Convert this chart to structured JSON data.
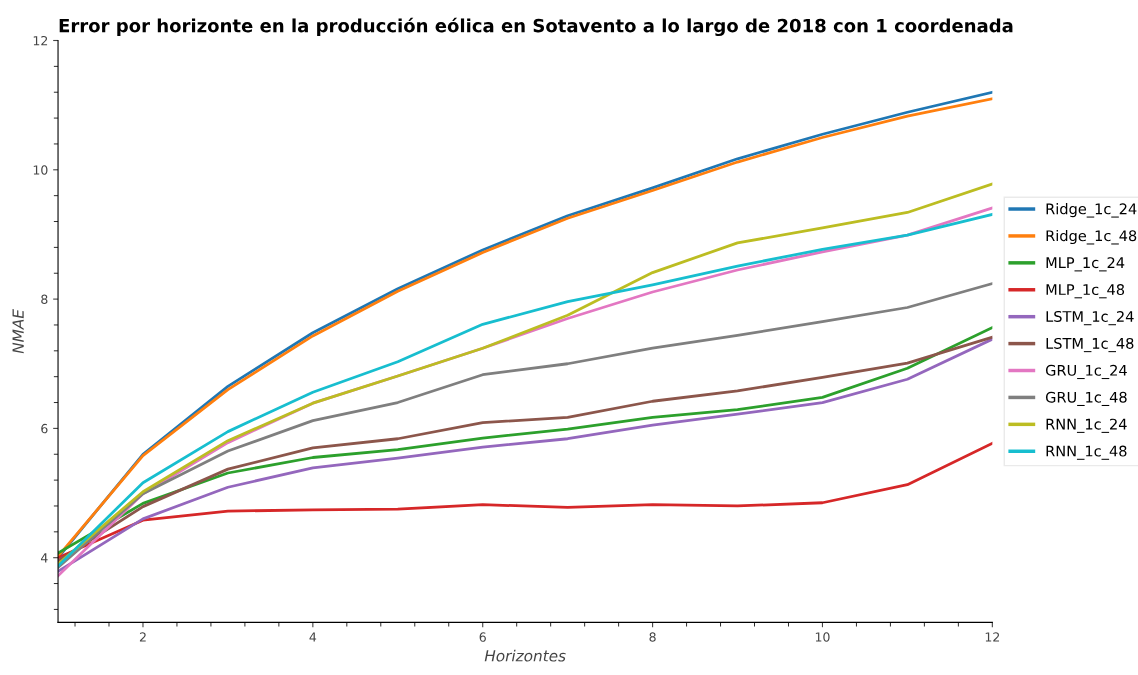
{
  "chart_data": {
    "type": "line",
    "title": "Error por horizonte en la producción eólica en Sotavento a lo largo de 2018 con 1 coordenada",
    "xlabel": "Horizontes",
    "ylabel": "NMAE",
    "x": [
      1,
      2,
      3,
      4,
      5,
      6,
      7,
      8,
      9,
      10,
      11,
      12
    ],
    "series": [
      {
        "name": "Ridge_1c_24",
        "color": "#1f77b4",
        "values": [
          4.0,
          5.6,
          6.65,
          7.48,
          8.16,
          8.76,
          9.29,
          9.72,
          10.17,
          10.55,
          10.89,
          11.2
        ]
      },
      {
        "name": "Ridge_1c_48",
        "color": "#ff7f0e",
        "values": [
          4.02,
          5.58,
          6.6,
          7.43,
          8.12,
          8.72,
          9.25,
          9.68,
          10.12,
          10.5,
          10.83,
          11.1
        ]
      },
      {
        "name": "MLP_1c_24",
        "color": "#2ca02c",
        "values": [
          4.07,
          4.84,
          5.31,
          5.55,
          5.67,
          5.85,
          5.99,
          6.17,
          6.29,
          6.48,
          6.93,
          7.56
        ]
      },
      {
        "name": "MLP_1c_48",
        "color": "#d62728",
        "values": [
          4.0,
          4.58,
          4.72,
          4.74,
          4.75,
          4.82,
          4.78,
          4.82,
          4.8,
          4.85,
          5.13,
          5.77
        ]
      },
      {
        "name": "LSTM_1c_24",
        "color": "#9467bd",
        "values": [
          3.79,
          4.6,
          5.09,
          5.39,
          5.54,
          5.71,
          5.84,
          6.05,
          6.22,
          6.4,
          6.76,
          7.38
        ]
      },
      {
        "name": "LSTM_1c_48",
        "color": "#8c564b",
        "values": [
          3.95,
          4.79,
          5.37,
          5.7,
          5.84,
          6.09,
          6.17,
          6.42,
          6.58,
          6.79,
          7.01,
          7.41
        ]
      },
      {
        "name": "GRU_1c_24",
        "color": "#e377c2",
        "values": [
          3.72,
          4.99,
          5.78,
          6.39,
          6.81,
          7.24,
          7.7,
          8.11,
          8.45,
          8.73,
          8.99,
          9.41
        ]
      },
      {
        "name": "GRU_1c_48",
        "color": "#7f7f7f",
        "values": [
          3.85,
          4.99,
          5.65,
          6.12,
          6.4,
          6.83,
          7.0,
          7.24,
          7.44,
          7.65,
          7.87,
          8.24
        ]
      },
      {
        "name": "RNN_1c_24",
        "color": "#bcbd22",
        "values": [
          3.9,
          5.02,
          5.81,
          6.39,
          6.81,
          7.24,
          7.75,
          8.41,
          8.87,
          9.1,
          9.34,
          9.78
        ]
      },
      {
        "name": "RNN_1c_48",
        "color": "#17becf",
        "values": [
          3.87,
          5.16,
          5.95,
          6.56,
          7.03,
          7.61,
          7.96,
          8.22,
          8.51,
          8.77,
          8.99,
          9.31
        ]
      }
    ],
    "xlim": [
      1,
      12
    ],
    "xticks": [
      2,
      4,
      6,
      8,
      10,
      12
    ],
    "ylim": [
      3,
      12
    ],
    "yticks": [
      4,
      6,
      8,
      10,
      12
    ],
    "grid": false,
    "legend": "right",
    "marker": "none",
    "line_style": "solid"
  }
}
